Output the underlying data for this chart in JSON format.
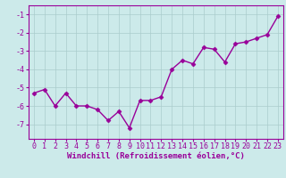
{
  "x": [
    0,
    1,
    2,
    3,
    4,
    5,
    6,
    7,
    8,
    9,
    10,
    11,
    12,
    13,
    14,
    15,
    16,
    17,
    18,
    19,
    20,
    21,
    22,
    23
  ],
  "y": [
    -5.3,
    -5.1,
    -6.0,
    -5.3,
    -6.0,
    -6.0,
    -6.2,
    -6.8,
    -6.3,
    -7.2,
    -5.7,
    -5.7,
    -5.5,
    -4.0,
    -3.5,
    -3.7,
    -2.8,
    -2.9,
    -3.6,
    -2.6,
    -2.5,
    -2.3,
    -2.1,
    -1.1
  ],
  "line_color": "#990099",
  "marker": "D",
  "markersize": 2.5,
  "linewidth": 1.0,
  "bg_color": "#cceaea",
  "grid_color": "#aacccc",
  "tick_color": "#990099",
  "xlabel": "Windchill (Refroidissement éolien,°C)",
  "xlabel_fontsize": 6.5,
  "ylim": [
    -7.8,
    -0.5
  ],
  "yticks": [
    -7,
    -6,
    -5,
    -4,
    -3,
    -2,
    -1
  ],
  "xticks": [
    0,
    1,
    2,
    3,
    4,
    5,
    6,
    7,
    8,
    9,
    10,
    11,
    12,
    13,
    14,
    15,
    16,
    17,
    18,
    19,
    20,
    21,
    22,
    23
  ],
  "tick_fontsize": 6.0
}
